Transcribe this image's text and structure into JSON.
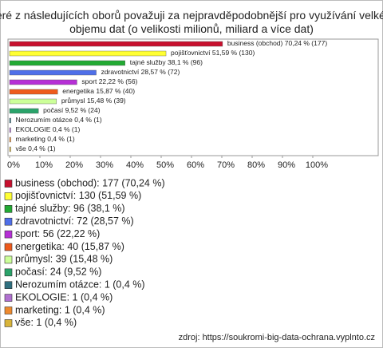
{
  "chart_data": {
    "type": "bar",
    "orientation": "horizontal",
    "title": "Které z následujících oborů považuji za nejpravděpodobnější pro využívání velkého objemu dat (o velikosti milionů, miliard a více dat)",
    "categories": [
      "business (obchod)",
      "pojišťovnictví",
      "tajné služby",
      "zdravotnictví",
      "sport",
      "energetika",
      "průmysl",
      "počasí",
      "Nerozumím otázce",
      "EKOLOGIE",
      "marketing",
      "vše"
    ],
    "values": [
      70.24,
      51.59,
      38.1,
      28.57,
      22.22,
      15.87,
      15.48,
      9.52,
      0.4,
      0.4,
      0.4,
      0.4
    ],
    "value_labels": [
      "70,24 % (177)",
      "51,59 % (130)",
      "38,1 % (96)",
      "28,57 % (72)",
      "22,22 % (56)",
      "15,87 % (40)",
      "15,48 % (39)",
      "9,52 % (24)",
      "0,4 % (1)",
      "0,4 % (1)",
      "0,4 % (1)",
      "0,4 % (1)"
    ],
    "colors": [
      "#c8102e",
      "#ffff33",
      "#22aa33",
      "#4f6fe8",
      "#b62fd6",
      "#ee5a1c",
      "#ccff99",
      "#2aa36a",
      "#2f6f7f",
      "#b070d0",
      "#ee8a2e",
      "#d8b43a"
    ],
    "legend": [
      "business (obchod): 177 (70,24 %)",
      "pojišťovnictví: 130 (51,59 %)",
      "tajné služby: 96 (38,1 %)",
      "zdravotnictví: 72 (28,57 %)",
      "sport: 56 (22,22 %)",
      "energetika: 40 (15,87 %)",
      "průmysl: 39 (15,48 %)",
      "počasí: 24 (9,52 %)",
      "Nerozumím otázce: 1 (0,4 %)",
      "EKOLOGIE: 1 (0,4 %)",
      "marketing: 1 (0,4 %)",
      "vše: 1 (0,4 %)"
    ],
    "xlim": [
      0,
      100
    ],
    "xticks": [
      {
        "value": 0,
        "label": "0%"
      },
      {
        "value": 10,
        "label": "10%"
      },
      {
        "value": 20,
        "label": "20%"
      },
      {
        "value": 30,
        "label": "30%"
      },
      {
        "value": 40,
        "label": "40%"
      },
      {
        "value": 50,
        "label": "50%"
      },
      {
        "value": 60,
        "label": "60%"
      },
      {
        "value": 70,
        "label": "70%"
      },
      {
        "value": 80,
        "label": "80%"
      },
      {
        "value": 90,
        "label": "90%"
      },
      {
        "value": 100,
        "label": "100%"
      }
    ],
    "source": "zdroj: https://soukromi-big-data-ochrana.vyplnto.cz"
  }
}
